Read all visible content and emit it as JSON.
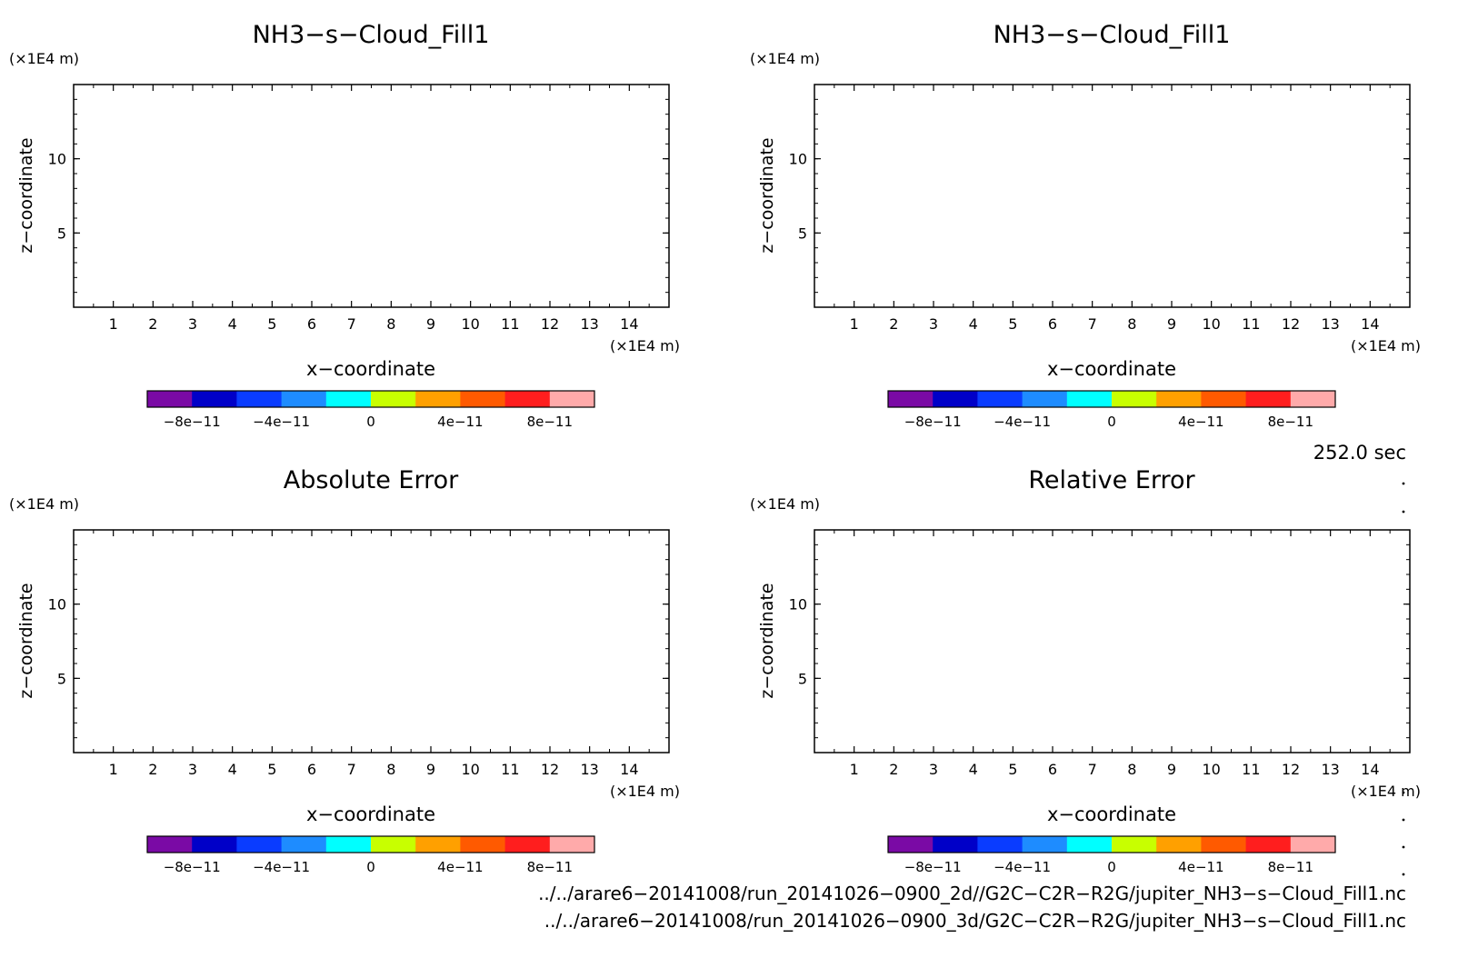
{
  "chart_data": [
    {
      "type": "heatmap",
      "title": "NH3−s−Cloud_Fill1",
      "xlabel": "x−coordinate",
      "ylabel": "z−coordinate",
      "x_unit": "(×1E4 m)",
      "y_unit": "(×1E4 m)",
      "xlim": [
        0,
        15
      ],
      "ylim": [
        0,
        15
      ],
      "x_ticks": [
        "1",
        "2",
        "3",
        "4",
        "5",
        "6",
        "7",
        "8",
        "9",
        "10",
        "11",
        "12",
        "13",
        "14"
      ],
      "y_ticks": [
        "5",
        "10"
      ],
      "values": [],
      "colorbar": {
        "range": [
          -1e-10,
          1e-10
        ],
        "labels": [
          "−8e−11",
          "−4e−11",
          "0",
          "4e−11",
          "8e−11"
        ]
      }
    },
    {
      "type": "heatmap",
      "title": "NH3−s−Cloud_Fill1",
      "xlabel": "x−coordinate",
      "ylabel": "z−coordinate",
      "x_unit": "(×1E4 m)",
      "y_unit": "(×1E4 m)",
      "xlim": [
        0,
        15
      ],
      "ylim": [
        0,
        15
      ],
      "x_ticks": [
        "1",
        "2",
        "3",
        "4",
        "5",
        "6",
        "7",
        "8",
        "9",
        "10",
        "11",
        "12",
        "13",
        "14"
      ],
      "y_ticks": [
        "5",
        "10"
      ],
      "values": [],
      "colorbar": {
        "range": [
          -1e-10,
          1e-10
        ],
        "labels": [
          "−8e−11",
          "−4e−11",
          "0",
          "4e−11",
          "8e−11"
        ]
      }
    },
    {
      "type": "heatmap",
      "title": "Absolute Error",
      "xlabel": "x−coordinate",
      "ylabel": "z−coordinate",
      "x_unit": "(×1E4 m)",
      "y_unit": "(×1E4 m)",
      "xlim": [
        0,
        15
      ],
      "ylim": [
        0,
        15
      ],
      "x_ticks": [
        "1",
        "2",
        "3",
        "4",
        "5",
        "6",
        "7",
        "8",
        "9",
        "10",
        "11",
        "12",
        "13",
        "14"
      ],
      "y_ticks": [
        "5",
        "10"
      ],
      "values": [],
      "colorbar": {
        "range": [
          -1e-10,
          1e-10
        ],
        "labels": [
          "−8e−11",
          "−4e−11",
          "0",
          "4e−11",
          "8e−11"
        ]
      }
    },
    {
      "type": "heatmap",
      "title": "Relative Error",
      "xlabel": "x−coordinate",
      "ylabel": "z−coordinate",
      "x_unit": "(×1E4 m)",
      "y_unit": "(×1E4 m)",
      "xlim": [
        0,
        15
      ],
      "ylim": [
        0,
        15
      ],
      "x_ticks": [
        "1",
        "2",
        "3",
        "4",
        "5",
        "6",
        "7",
        "8",
        "9",
        "10",
        "11",
        "12",
        "13",
        "14"
      ],
      "y_ticks": [
        "5",
        "10"
      ],
      "values": [],
      "colorbar": {
        "range": [
          -1e-10,
          1e-10
        ],
        "labels": [
          "−8e−11",
          "−4e−11",
          "0",
          "4e−11",
          "8e−11"
        ]
      }
    }
  ],
  "colorbar_colors": [
    "#7a0aa5",
    "#0000c8",
    "#0a3cff",
    "#1e8cff",
    "#00ffff",
    "#c8ff00",
    "#ffa000",
    "#ff5a00",
    "#ff1e1e",
    "#ffaaaa"
  ],
  "time_label": "252.0 sec",
  "files": [
    "../../arare6−20141008/run_20141026−0900_2d//G2C−C2R−R2G/jupiter_NH3−s−Cloud_Fill1.nc",
    "../../arare6−20141008/run_20141026−0900_3d/G2C−C2R−R2G/jupiter_NH3−s−Cloud_Fill1.nc"
  ]
}
